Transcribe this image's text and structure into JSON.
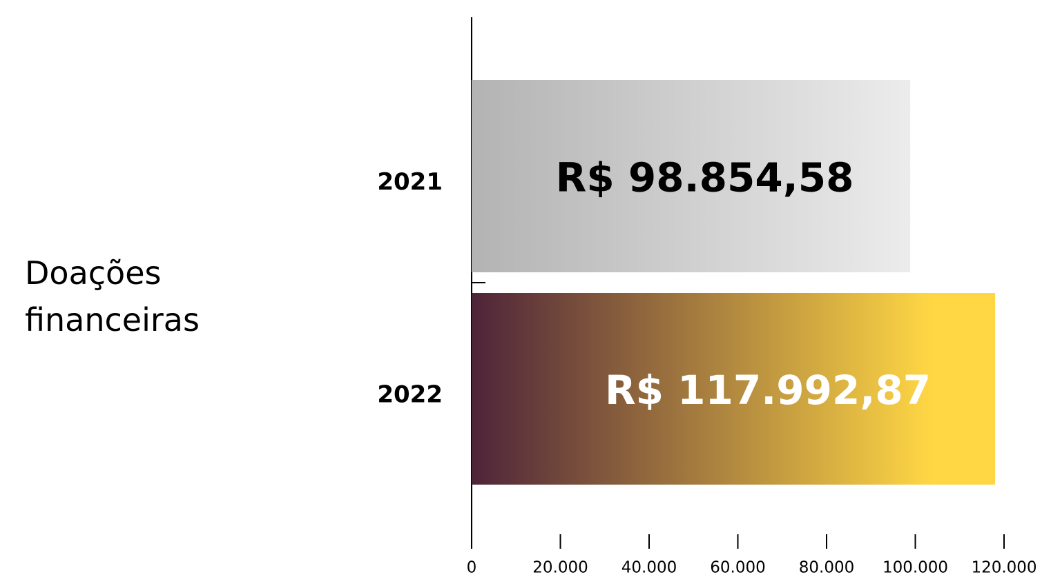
{
  "chart_data": {
    "type": "barh",
    "title": "Doações financeiras",
    "categories": [
      "2021",
      "2022"
    ],
    "values": [
      98854.58,
      117992.87
    ],
    "value_labels": [
      "R$ 98.854,58",
      "R$ 117.992,87"
    ],
    "colors": [
      [
        "#b3b3b3",
        "#ececec"
      ],
      [
        "#4e2439",
        "#ffd744"
      ]
    ],
    "xlim": [
      0,
      120000
    ],
    "xticks": [
      0,
      {
        "value": 20000,
        "label": "20.000"
      },
      {
        "value": 40000,
        "label": "40.000"
      },
      {
        "value": 60000,
        "label": "60.000"
      },
      {
        "value": 80000,
        "label": "80.000"
      },
      {
        "value": 100000,
        "label": "100.000"
      },
      {
        "value": 120000,
        "label": "120.000"
      }
    ],
    "grid": false
  }
}
